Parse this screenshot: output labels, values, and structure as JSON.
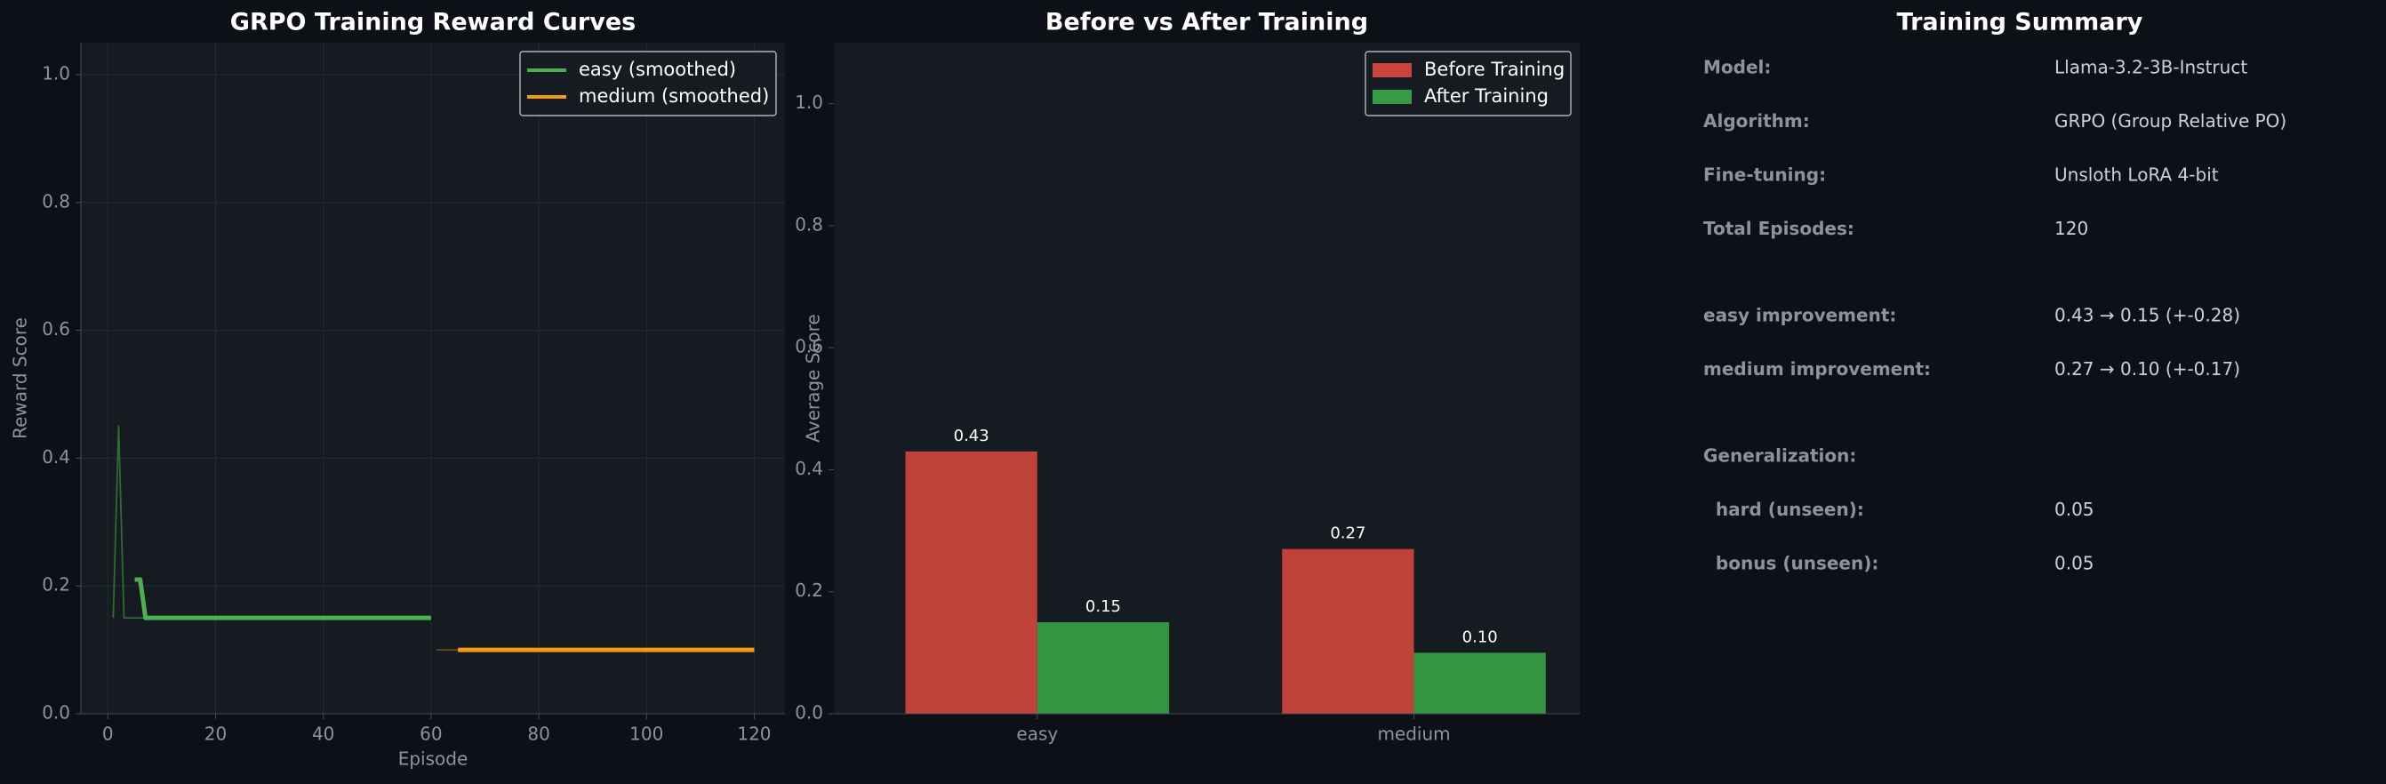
{
  "chart_data": [
    {
      "type": "line",
      "title": "GRPO Training Reward Curves",
      "xlabel": "Episode",
      "ylabel": "Reward Score",
      "xlim": [
        -5,
        125.7
      ],
      "ylim": [
        0,
        1.05
      ],
      "xticks": [
        0,
        20,
        40,
        60,
        80,
        100,
        120
      ],
      "yticks": [
        {
          "value": 0,
          "label": "0.0"
        },
        0.2,
        0.4,
        0.6,
        0.8,
        {
          "value": 1.0,
          "label": "1.0"
        }
      ],
      "grid": true,
      "legend": "upper right",
      "series": [
        {
          "color": "#2f6b34",
          "x": [
            1,
            2,
            3,
            4,
            5,
            6,
            7,
            60
          ],
          "values": [
            0.15,
            0.45,
            0.15,
            0.15,
            0.15,
            0.15,
            0.15,
            0.15
          ]
        },
        {
          "color": "#6b4b1c",
          "x": [
            61,
            65,
            120
          ],
          "values": [
            0.1,
            0.1,
            0.1
          ]
        },
        {
          "name": "easy (smoothed)",
          "color": "#4caf50",
          "x": [
            5,
            6,
            7,
            60
          ],
          "values": [
            0.21,
            0.21,
            0.15,
            0.15
          ]
        },
        {
          "name": "medium (smoothed)",
          "color": "#f39c12",
          "x": [
            65,
            120
          ],
          "values": [
            0.1,
            0.1
          ]
        }
      ]
    },
    {
      "type": "bar",
      "title": "Before vs After Training",
      "ylabel": "Average Score",
      "categories": [
        "easy",
        "medium"
      ],
      "ylim": [
        0,
        1.1
      ],
      "yticks": [
        {
          "value": 0,
          "label": "0.0"
        },
        0.2,
        0.4,
        0.6,
        0.8,
        {
          "value": 1.0,
          "label": "1.0"
        }
      ],
      "grid": false,
      "legend": "upper right",
      "series": [
        {
          "name": "Before Training",
          "color": "#c9443d",
          "values": [
            0.43,
            0.27
          ],
          "value_labels": [
            "0.43",
            "0.27"
          ]
        },
        {
          "name": "After Training",
          "color": "#359b45",
          "values": [
            0.15,
            0.1
          ],
          "value_labels": [
            "0.15",
            "0.10"
          ]
        }
      ]
    }
  ],
  "summary": {
    "title": "Training Summary",
    "groups": [
      [
        {
          "label": "Model:",
          "value": "Llama-3.2-3B-Instruct"
        },
        {
          "label": "Algorithm:",
          "value": "GRPO (Group Relative PO)"
        },
        {
          "label": "Fine-tuning:",
          "value": "Unsloth LoRA 4-bit"
        },
        {
          "label": "Total Episodes:",
          "value": "120"
        }
      ],
      [
        {
          "label": "easy improvement:",
          "value": "0.43 → 0.15 (+-0.28)"
        },
        {
          "label": "medium improvement:",
          "value": "0.27 → 0.10 (+-0.17)"
        }
      ],
      [
        {
          "label": "Generalization:"
        },
        {
          "label": "  hard (unseen):",
          "value": "0.05"
        },
        {
          "label": "  bonus (unseen):",
          "value": "0.05"
        }
      ]
    ]
  }
}
